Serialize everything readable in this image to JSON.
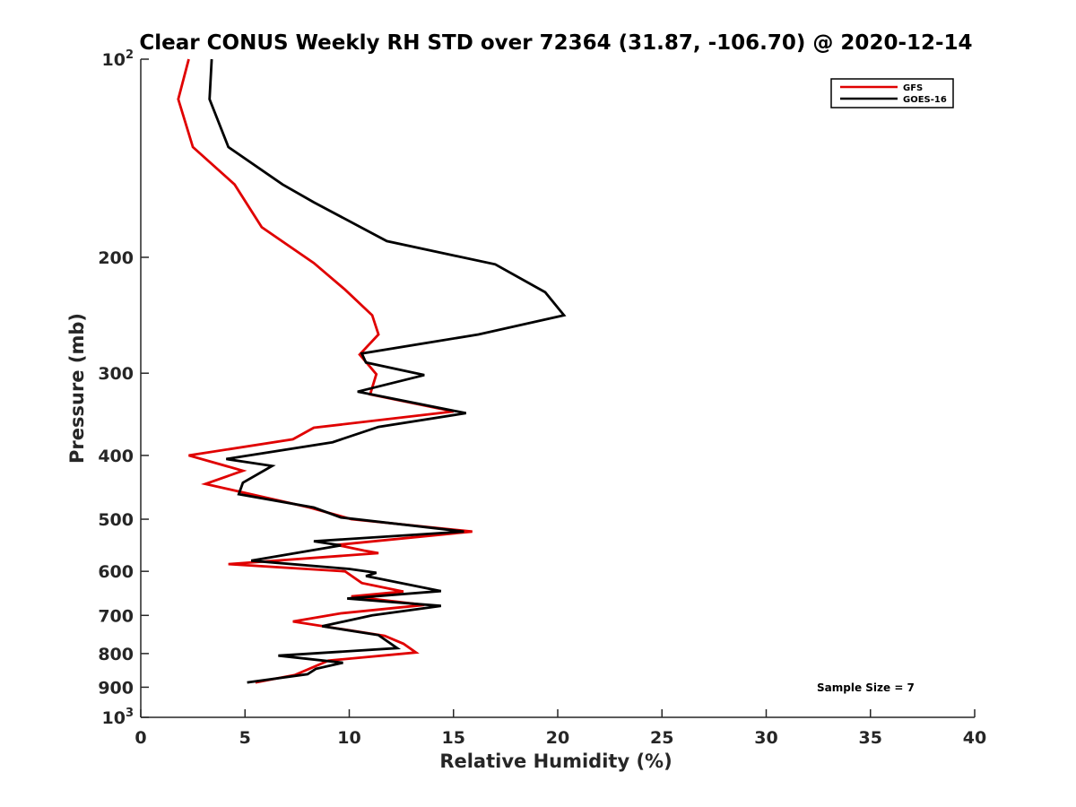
{
  "chart_data": {
    "type": "line",
    "title": "Clear CONUS Weekly RH STD over 72364 (31.87, -106.70) @ 2020-12-14",
    "xlabel": "Relative Humidity (%)",
    "ylabel": "Pressure (mb)",
    "xlim": [
      0,
      40
    ],
    "ylim": [
      100,
      1000
    ],
    "y_scale": "log",
    "y_reversed": true,
    "grid": false,
    "legend_position": "top-right",
    "x_ticks": [
      "0",
      "5",
      "10",
      "15",
      "20",
      "25",
      "30",
      "35",
      "40"
    ],
    "y_ticks": [
      {
        "value": 100,
        "base": "10",
        "exp": "2"
      },
      {
        "value": 200,
        "label": "200"
      },
      {
        "value": 300,
        "label": "300"
      },
      {
        "value": 400,
        "label": "400"
      },
      {
        "value": 500,
        "label": "500"
      },
      {
        "value": 600,
        "label": "600"
      },
      {
        "value": 700,
        "label": "700"
      },
      {
        "value": 800,
        "label": "800"
      },
      {
        "value": 900,
        "label": "900"
      },
      {
        "value": 1000,
        "base": "10",
        "exp": "3"
      }
    ],
    "annotation": "Sample Size = 7",
    "series": [
      {
        "name": "GFS",
        "color": "#e00000",
        "points": [
          [
            2.3,
            100
          ],
          [
            1.8,
            115
          ],
          [
            2.5,
            136
          ],
          [
            4.5,
            155
          ],
          [
            5.8,
            180
          ],
          [
            8.3,
            204
          ],
          [
            9.8,
            224
          ],
          [
            11.1,
            245
          ],
          [
            11.4,
            262
          ],
          [
            10.5,
            281
          ],
          [
            11.3,
            301
          ],
          [
            11.0,
            323
          ],
          [
            15.0,
            343
          ],
          [
            8.3,
            363
          ],
          [
            7.3,
            378
          ],
          [
            2.3,
            400
          ],
          [
            4.9,
            422
          ],
          [
            3.1,
            442
          ],
          [
            8.1,
            480
          ],
          [
            10.1,
            500
          ],
          [
            15.9,
            522
          ],
          [
            9.4,
            547
          ],
          [
            10.7,
            558
          ],
          [
            11.4,
            563
          ],
          [
            4.2,
            585
          ],
          [
            9.8,
            600
          ],
          [
            10.6,
            625
          ],
          [
            12.6,
            644
          ],
          [
            10.1,
            655
          ],
          [
            13.6,
            675
          ],
          [
            9.6,
            695
          ],
          [
            7.3,
            715
          ],
          [
            11.7,
            752
          ],
          [
            12.6,
            773
          ],
          [
            13.2,
            797
          ],
          [
            9.0,
            820
          ],
          [
            7.4,
            862
          ],
          [
            5.5,
            885
          ]
        ]
      },
      {
        "name": "GOES-16",
        "color": "#000000",
        "points": [
          [
            3.4,
            100
          ],
          [
            3.3,
            115
          ],
          [
            4.2,
            136
          ],
          [
            6.8,
            155
          ],
          [
            8.3,
            165
          ],
          [
            11.8,
            189
          ],
          [
            17.0,
            205
          ],
          [
            19.4,
            226
          ],
          [
            20.3,
            245
          ],
          [
            16.2,
            262
          ],
          [
            10.6,
            280
          ],
          [
            10.8,
            289
          ],
          [
            13.6,
            302
          ],
          [
            10.4,
            320
          ],
          [
            15.6,
            345
          ],
          [
            11.4,
            362
          ],
          [
            9.2,
            382
          ],
          [
            4.1,
            405
          ],
          [
            6.3,
            415
          ],
          [
            4.9,
            440
          ],
          [
            4.7,
            458
          ],
          [
            8.3,
            480
          ],
          [
            9.6,
            497
          ],
          [
            15.5,
            522
          ],
          [
            8.3,
            540
          ],
          [
            9.6,
            548
          ],
          [
            5.3,
            578
          ],
          [
            10.0,
            595
          ],
          [
            11.3,
            603
          ],
          [
            10.8,
            610
          ],
          [
            14.4,
            643
          ],
          [
            9.9,
            660
          ],
          [
            14.4,
            677
          ],
          [
            11.1,
            700
          ],
          [
            8.7,
            727
          ],
          [
            11.4,
            750
          ],
          [
            12.3,
            785
          ],
          [
            6.6,
            806
          ],
          [
            9.7,
            826
          ],
          [
            8.4,
            844
          ],
          [
            8.0,
            860
          ],
          [
            5.1,
            885
          ]
        ]
      }
    ]
  }
}
